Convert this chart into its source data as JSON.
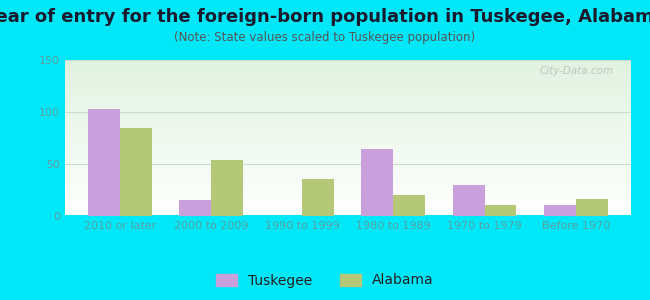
{
  "title": "Year of entry for the foreign-born population in Tuskegee, Alabama",
  "subtitle": "(Note: State values scaled to Tuskegee population)",
  "categories": [
    "2010 or later",
    "2000 to 2009",
    "1990 to 1999",
    "1980 to 1989",
    "1970 to 1979",
    "Before 1970"
  ],
  "tuskegee": [
    103,
    15,
    0,
    64,
    30,
    11
  ],
  "alabama": [
    85,
    54,
    36,
    20,
    11,
    16
  ],
  "tuskegee_color": "#c9a0dc",
  "alabama_color": "#b5c878",
  "ylim": [
    0,
    150
  ],
  "yticks": [
    0,
    50,
    100,
    150
  ],
  "outer_background": "#00e8f8",
  "bar_width": 0.35,
  "legend_tuskegee": "Tuskegee",
  "legend_alabama": "Alabama",
  "watermark": "City-Data.com",
  "title_fontsize": 13,
  "subtitle_fontsize": 8.5,
  "tick_fontsize": 8,
  "legend_fontsize": 10,
  "tick_color": "#5aa0a0",
  "title_color": "#1a1a2e",
  "subtitle_color": "#555555"
}
